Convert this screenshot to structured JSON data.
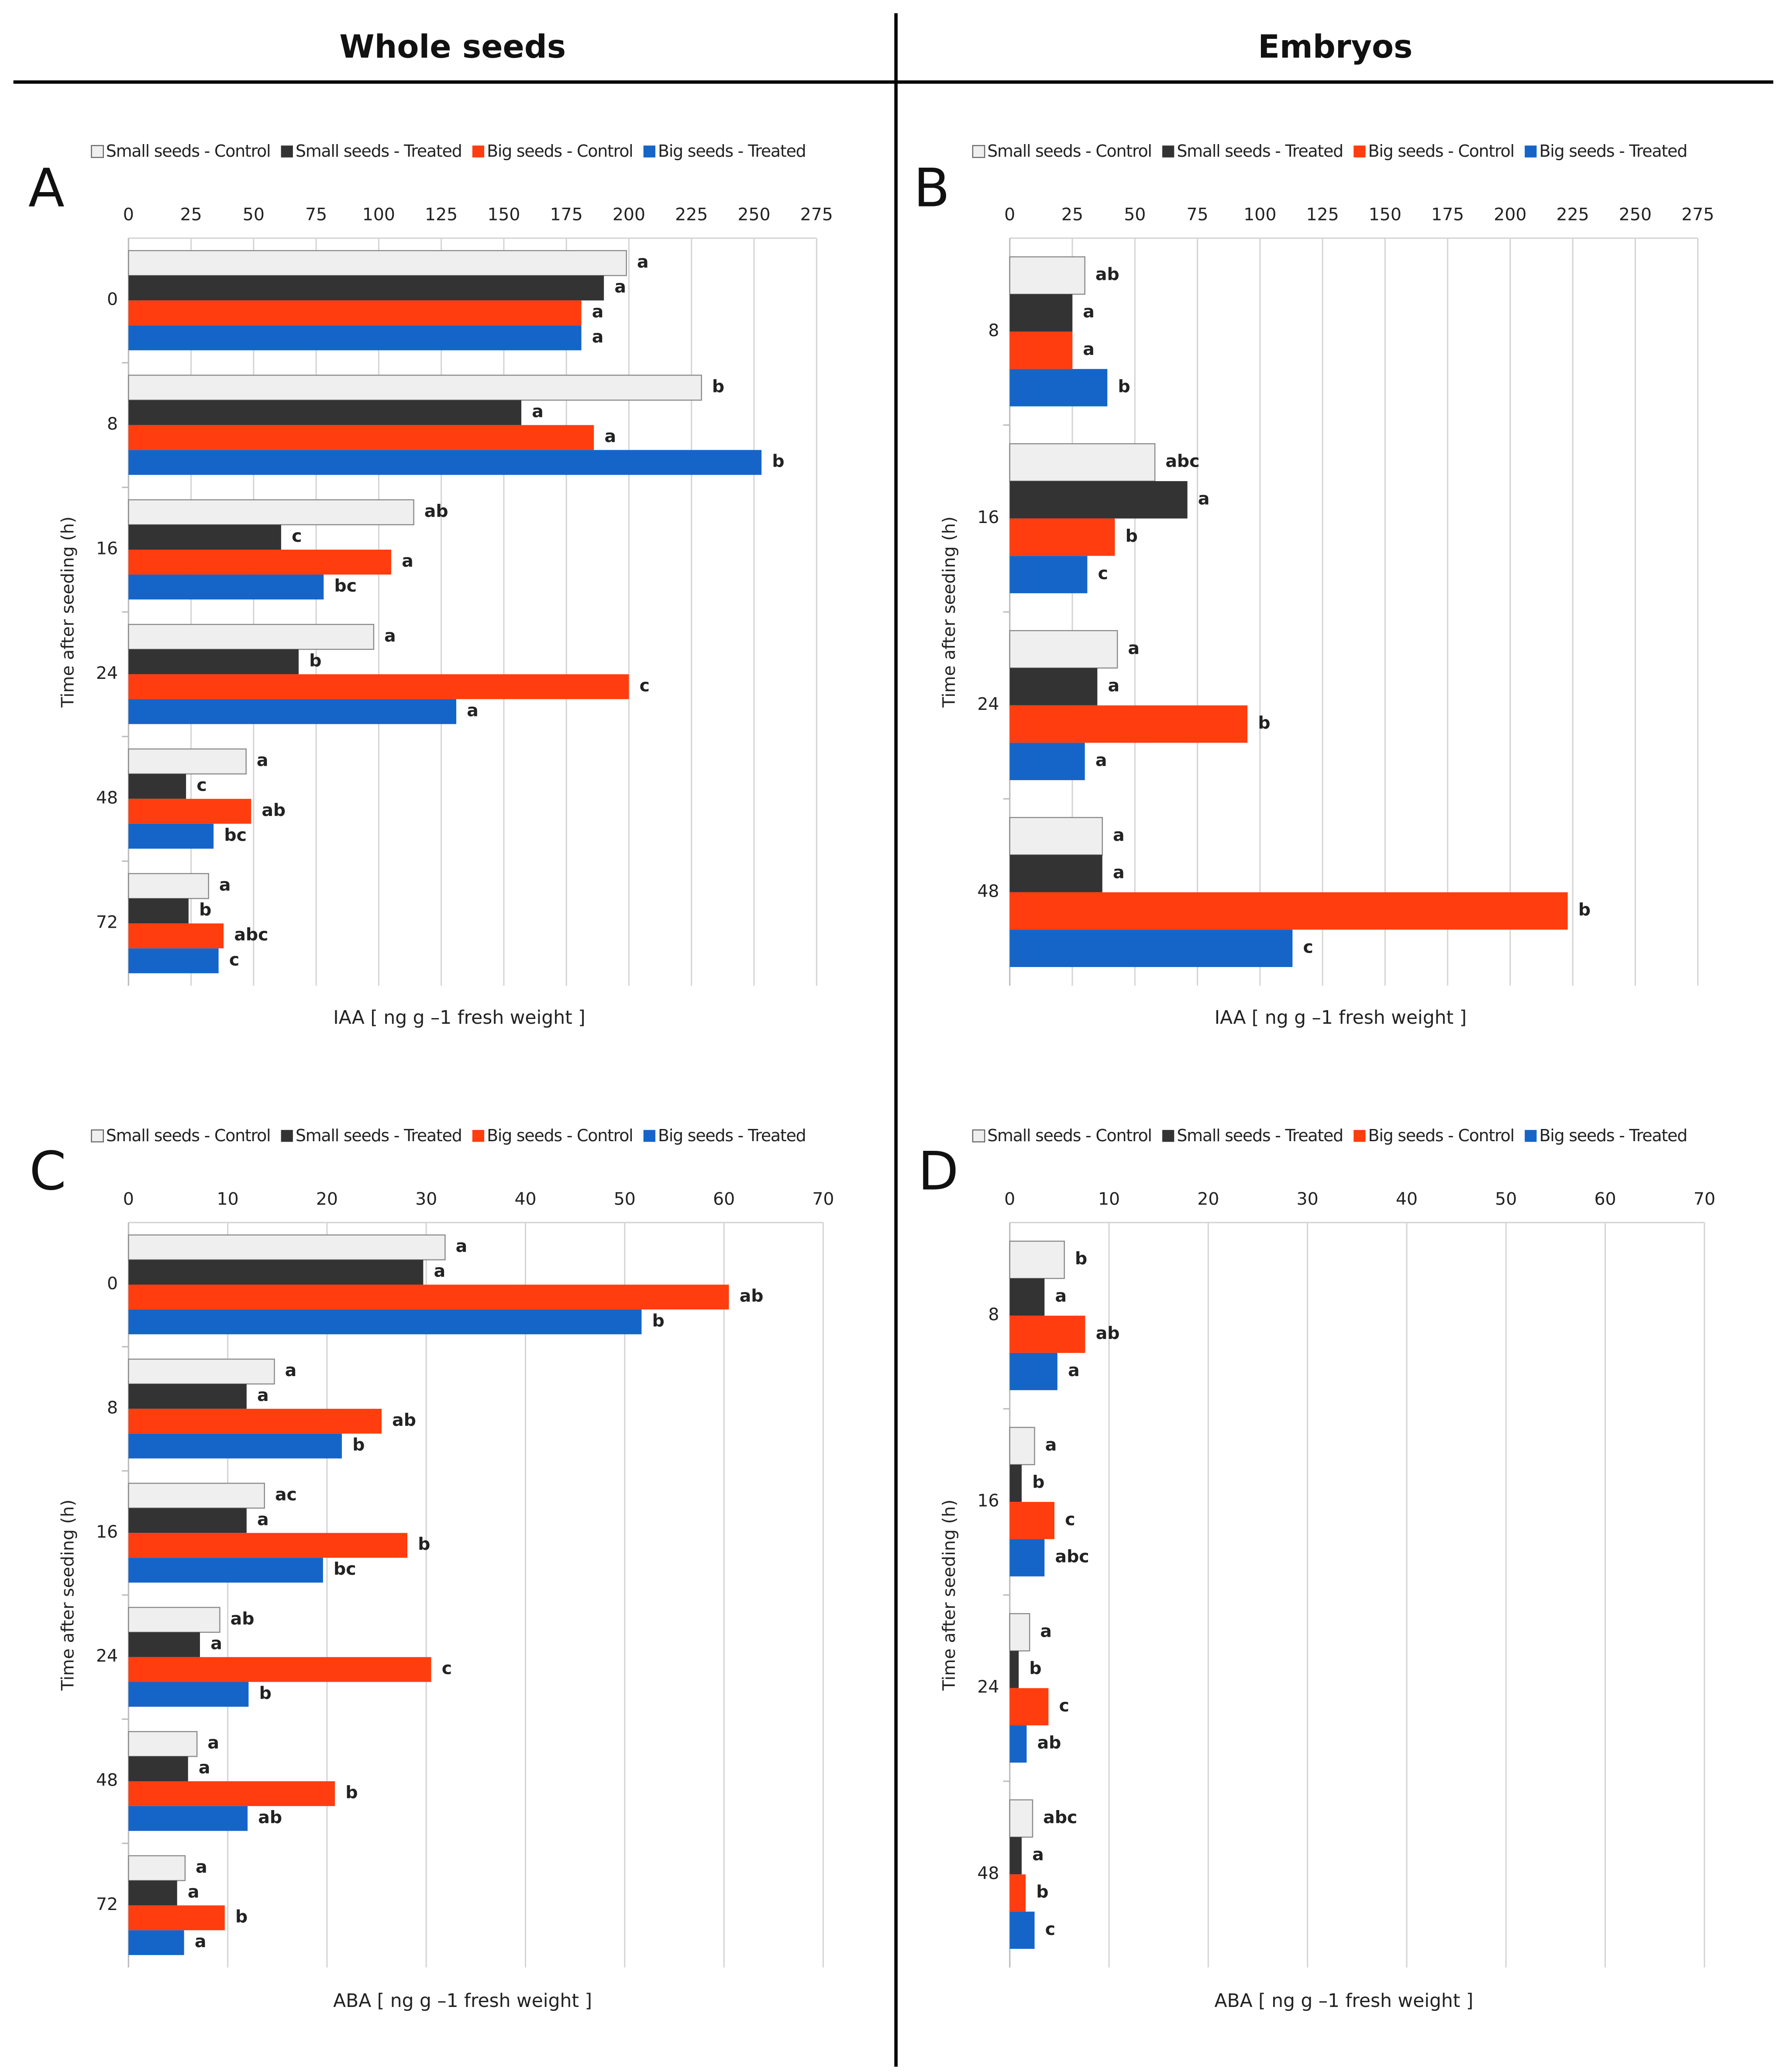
{
  "headers": [
    "Whole seeds",
    "Embryos"
  ],
  "chart_data": [
    {
      "panel": "A",
      "type": "bar",
      "orientation": "horizontal",
      "xlabel": "IAA [ ng  g –1  fresh weight ]",
      "ylabel": "Time after seeding (h)",
      "categories": [
        "0",
        "8",
        "16",
        "24",
        "48",
        "72"
      ],
      "series": [
        {
          "name": "Small seeds - Control",
          "color": "#efefef",
          "values": [
            199,
            229,
            114,
            98,
            47,
            32
          ],
          "letters": [
            "a",
            "b",
            "ab",
            "a",
            "a",
            "a"
          ]
        },
        {
          "name": "Small seeds - Treated",
          "color": "#333333",
          "values": [
            190,
            157,
            61,
            68,
            23,
            24
          ],
          "letters": [
            "a",
            "a",
            "c",
            "b",
            "c",
            "b"
          ]
        },
        {
          "name": "Big seeds - Control",
          "color": "#ff3d0f",
          "values": [
            181,
            186,
            105,
            200,
            49,
            38
          ],
          "letters": [
            "a",
            "a",
            "a",
            "c",
            "ab",
            "abc"
          ]
        },
        {
          "name": "Big seeds - Treated",
          "color": "#1565c8",
          "values": [
            181,
            253,
            78,
            131,
            34,
            36
          ],
          "letters": [
            "a",
            "b",
            "bc",
            "a",
            "bc",
            "c"
          ]
        }
      ],
      "xlim": [
        0,
        275
      ],
      "xticks": [
        0,
        25,
        50,
        75,
        100,
        125,
        150,
        175,
        200,
        225,
        250,
        275
      ],
      "grid": true
    },
    {
      "panel": "B",
      "type": "bar",
      "orientation": "horizontal",
      "xlabel": "IAA [ ng  g –1  fresh weight ]",
      "ylabel": "Time after seeding (h)",
      "categories": [
        "8",
        "16",
        "24",
        "48"
      ],
      "series": [
        {
          "name": "Small seeds - Control",
          "color": "#efefef",
          "values": [
            30,
            58,
            43,
            37
          ],
          "letters": [
            "ab",
            "abc",
            "a",
            "a"
          ]
        },
        {
          "name": "Small seeds - Treated",
          "color": "#333333",
          "values": [
            25,
            71,
            35,
            37
          ],
          "letters": [
            "a",
            "a",
            "a",
            "a"
          ]
        },
        {
          "name": "Big seeds - Control",
          "color": "#ff3d0f",
          "values": [
            25,
            42,
            95,
            223
          ],
          "letters": [
            "a",
            "b",
            "b",
            "b"
          ]
        },
        {
          "name": "Big seeds - Treated",
          "color": "#1565c8",
          "values": [
            39,
            31,
            30,
            113
          ],
          "letters": [
            "b",
            "c",
            "a",
            "c"
          ]
        }
      ],
      "xlim": [
        0,
        275
      ],
      "xticks": [
        0,
        25,
        50,
        75,
        100,
        125,
        150,
        175,
        200,
        225,
        250,
        275
      ],
      "grid": true
    },
    {
      "panel": "C",
      "type": "bar",
      "orientation": "horizontal",
      "xlabel": "ABA [ ng  g –1  fresh weight ]",
      "ylabel": "Time after seeding (h)",
      "categories": [
        "0",
        "8",
        "16",
        "24",
        "48",
        "72"
      ],
      "series": [
        {
          "name": "Small seeds - Control",
          "color": "#efefef",
          "values": [
            31.9,
            14.7,
            13.7,
            9.2,
            6.9,
            5.7
          ],
          "letters": [
            "a",
            "a",
            "ac",
            "ab",
            "a",
            "a"
          ]
        },
        {
          "name": "Small seeds - Treated",
          "color": "#333333",
          "values": [
            29.7,
            11.9,
            11.9,
            7.2,
            6.0,
            4.9
          ],
          "letters": [
            "a",
            "a",
            "a",
            "a",
            "a",
            "a"
          ]
        },
        {
          "name": "Big seeds - Control",
          "color": "#ff3d0f",
          "values": [
            60.5,
            25.5,
            28.1,
            30.5,
            20.8,
            9.7
          ],
          "letters": [
            "ab",
            "ab",
            "b",
            "c",
            "b",
            "b"
          ]
        },
        {
          "name": "Big seeds - Treated",
          "color": "#1565c8",
          "values": [
            51.7,
            21.5,
            19.6,
            12.1,
            12.0,
            5.6
          ],
          "letters": [
            "b",
            "b",
            "bc",
            "b",
            "ab",
            "a"
          ]
        }
      ],
      "xlim": [
        0,
        70
      ],
      "xticks": [
        0,
        10,
        20,
        30,
        40,
        50,
        60,
        70
      ],
      "grid": true
    },
    {
      "panel": "D",
      "type": "bar",
      "orientation": "horizontal",
      "xlabel": "ABA [ ng  g –1  fresh weight ]",
      "ylabel": "Time after seeding (h)",
      "categories": [
        "8",
        "16",
        "24",
        "48"
      ],
      "series": [
        {
          "name": "Small seeds - Control",
          "color": "#efefef",
          "values": [
            5.5,
            2.5,
            2.0,
            2.3
          ],
          "letters": [
            "b",
            "a",
            "a",
            "abc"
          ]
        },
        {
          "name": "Small seeds - Treated",
          "color": "#333333",
          "values": [
            3.5,
            1.2,
            0.9,
            1.2
          ],
          "letters": [
            "a",
            "b",
            "b",
            "a"
          ]
        },
        {
          "name": "Big seeds - Control",
          "color": "#ff3d0f",
          "values": [
            7.6,
            4.5,
            3.9,
            1.6
          ],
          "letters": [
            "ab",
            "c",
            "c",
            "b"
          ]
        },
        {
          "name": "Big seeds - Treated",
          "color": "#1565c8",
          "values": [
            4.8,
            3.5,
            1.7,
            2.5
          ],
          "letters": [
            "a",
            "abc",
            "ab",
            "c"
          ]
        }
      ],
      "xlim": [
        0,
        70
      ],
      "xticks": [
        0,
        10,
        20,
        30,
        40,
        50,
        60,
        70
      ],
      "grid": true
    }
  ]
}
